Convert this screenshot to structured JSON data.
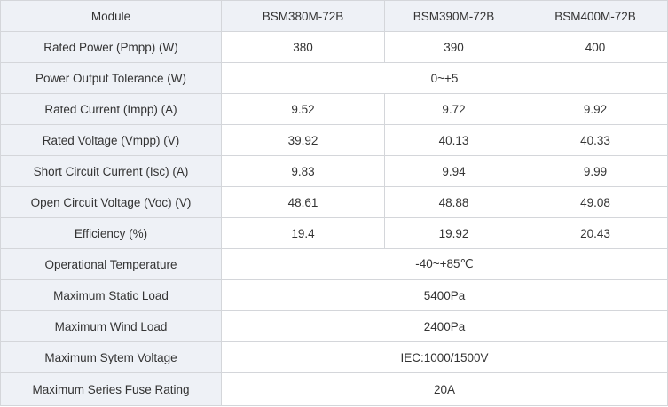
{
  "header": {
    "module": "Module",
    "models": [
      "BSM380M-72B",
      "BSM390M-72B",
      "BSM400M-72B"
    ]
  },
  "rows": [
    {
      "label": "Rated Power (Pmpp) (W)",
      "values": [
        "380",
        "390",
        "400"
      ]
    },
    {
      "label": "Power Output Tolerance (W)",
      "merged": "0~+5"
    },
    {
      "label": "Rated Current (Impp) (A)",
      "values": [
        "9.52",
        "9.72",
        "9.92"
      ]
    },
    {
      "label": "Rated Voltage (Vmpp) (V)",
      "values": [
        "39.92",
        "40.13",
        "40.33"
      ]
    },
    {
      "label": "Short Circuit Current (Isc) (A)",
      "values": [
        "9.83",
        "9.94",
        "9.99"
      ]
    },
    {
      "label": "Open Circuit Voltage (Voc) (V)",
      "values": [
        "48.61",
        "48.88",
        "49.08"
      ]
    },
    {
      "label": "Efficiency (%)",
      "values": [
        "19.4",
        "19.92",
        "20.43"
      ]
    },
    {
      "label": "Operational Temperature",
      "merged": "-40~+85℃"
    },
    {
      "label": "Maximum Static Load",
      "merged": "5400Pa"
    },
    {
      "label": "Maximum Wind Load",
      "merged": "2400Pa"
    },
    {
      "label": "Maximum Sytem Voltage",
      "merged": "IEC:1000/1500V"
    },
    {
      "label": "Maximum Series Fuse Rating",
      "merged": "20A"
    }
  ]
}
